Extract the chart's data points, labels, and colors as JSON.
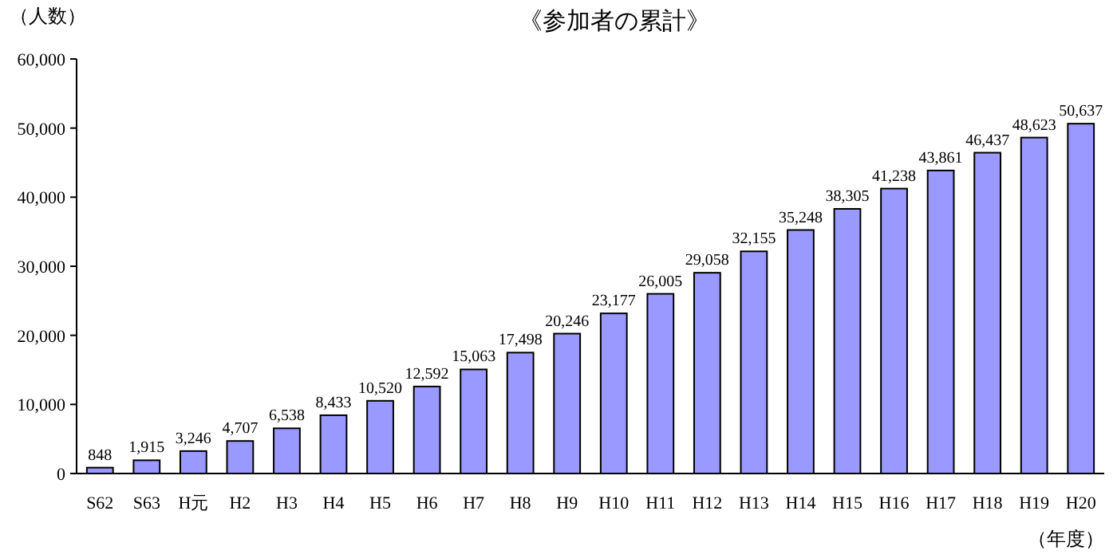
{
  "chart_data": {
    "type": "bar",
    "title": "《参加者の累計》",
    "ylabel": "（人数）",
    "xlabel": "（年度）",
    "categories": [
      "S62",
      "S63",
      "H元",
      "H2",
      "H3",
      "H4",
      "H5",
      "H6",
      "H7",
      "H8",
      "H9",
      "H10",
      "H11",
      "H12",
      "H13",
      "H14",
      "H15",
      "H16",
      "H17",
      "H18",
      "H19",
      "H20"
    ],
    "values": [
      848,
      1915,
      3246,
      4707,
      6538,
      8433,
      10520,
      12592,
      15063,
      17498,
      20246,
      23177,
      26005,
      29058,
      32155,
      35248,
      38305,
      41238,
      43861,
      46437,
      48623,
      50637
    ],
    "value_labels": [
      "848",
      "1,915",
      "3,246",
      "4,707",
      "6,538",
      "8,433",
      "10,520",
      "12,592",
      "15,063",
      "17,498",
      "20,246",
      "23,177",
      "26,005",
      "29,058",
      "32,155",
      "35,248",
      "38,305",
      "41,238",
      "43,861",
      "46,437",
      "48,623",
      "50,637"
    ],
    "color": "#9999ff",
    "ylim": [
      0,
      60000
    ],
    "yticks": [
      0,
      {
        "value": 10000,
        "label": "10,000"
      },
      {
        "value": 20000,
        "label": "20,000"
      },
      {
        "value": 30000,
        "label": "30,000"
      },
      {
        "value": 40000,
        "label": "40,000"
      },
      {
        "value": 50000,
        "label": "50,000"
      },
      {
        "value": 60000,
        "label": "60,000"
      }
    ],
    "grid": false
  }
}
